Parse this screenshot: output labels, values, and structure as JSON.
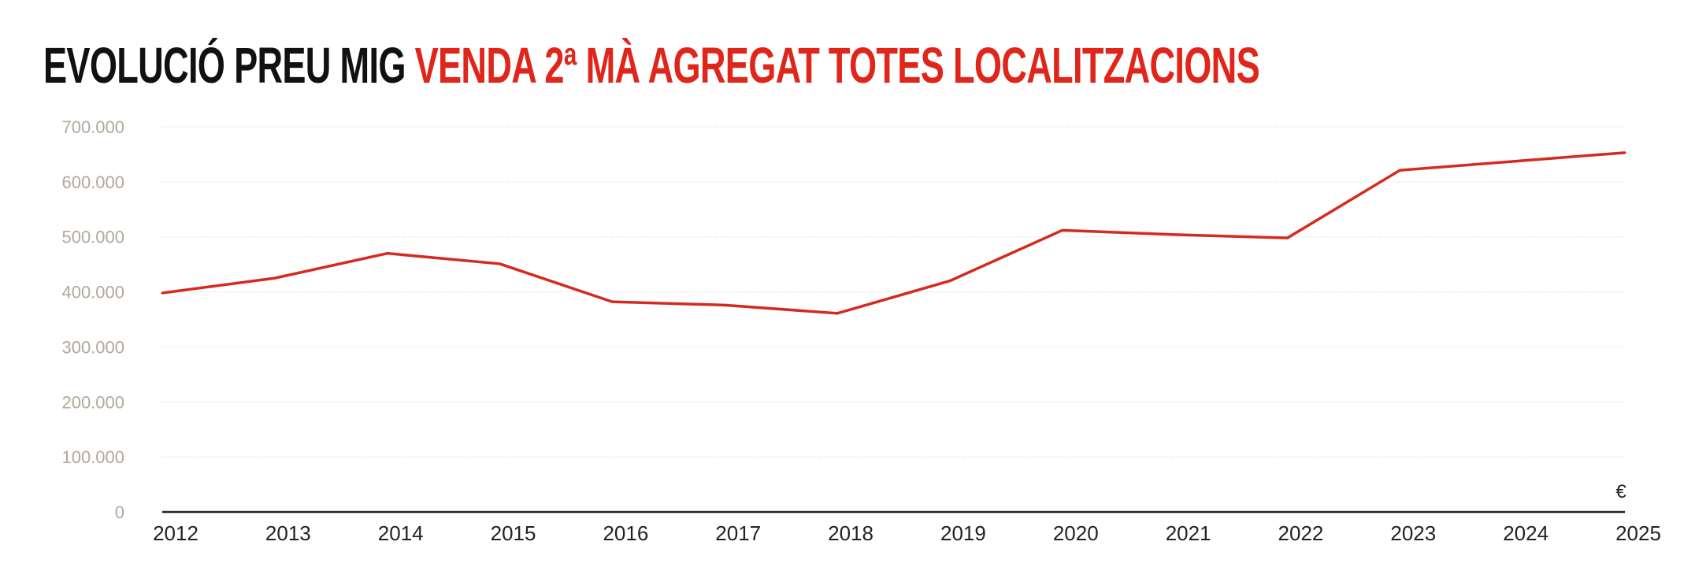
{
  "title": {
    "part1": "EVOLUCIÓ PREU MIG",
    "part2": "VENDA 2ª MÀ AGREGAT TOTES LOCALITZACIONS"
  },
  "colors": {
    "line": "#d42a1f",
    "title_accent": "#e0261b",
    "title_main": "#111111",
    "grid": "#e6e6e6",
    "axis": "#222222"
  },
  "chart_data": {
    "type": "line",
    "title": "EVOLUCIÓ PREU MIG VENDA 2ª MÀ AGREGAT TOTES LOCALITZACIONS",
    "xlabel": "",
    "ylabel": "",
    "unit": "€",
    "x": [
      2012,
      2013,
      2014,
      2015,
      2016,
      2017,
      2018,
      2019,
      2020,
      2021,
      2022,
      2023,
      2024,
      2025
    ],
    "x_tick_labels": [
      "2012",
      "2013",
      "2014",
      "2015",
      "2016",
      "2017",
      "2018",
      "2019",
      "2020",
      "2021",
      "2022",
      "2023",
      "2024",
      "2025"
    ],
    "series": [
      {
        "values": [
          398000,
          425000,
          470000,
          451000,
          382000,
          376000,
          361000,
          420000,
          512000,
          504000,
          498000,
          621000,
          637000,
          653000
        ]
      }
    ],
    "ylim": [
      0,
      700000
    ],
    "y_ticks": [
      0,
      100000,
      200000,
      300000,
      400000,
      500000,
      600000,
      700000
    ],
    "y_tick_labels": [
      "0",
      "100.000",
      "200.000",
      "300.000",
      "400.000",
      "500.000",
      "600.000",
      "700.000"
    ],
    "grid": true,
    "legend": "none"
  }
}
